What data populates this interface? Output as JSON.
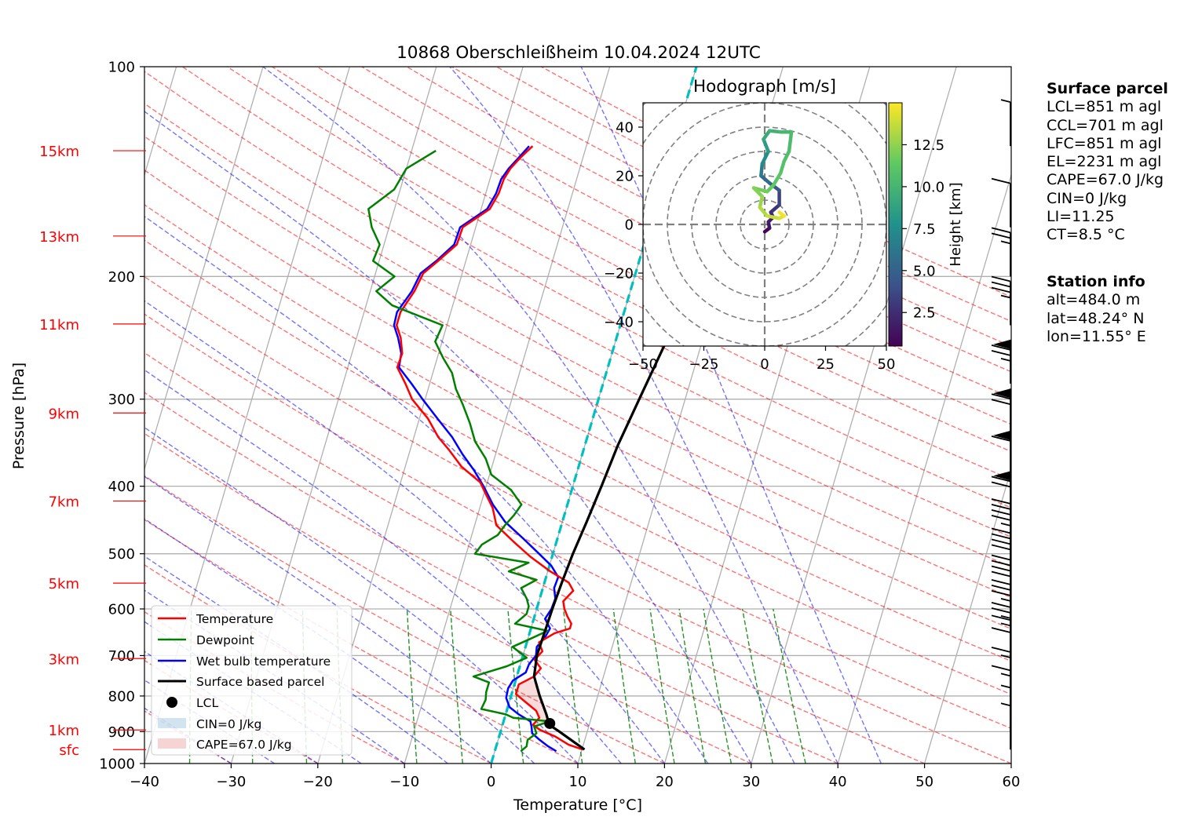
{
  "chart_data": {
    "type": "line",
    "title": "10868 Oberschleißheim 10.04.2024 12UTC",
    "xlabel": "Temperature [°C]",
    "ylabel": "Pressure [hPa]",
    "xlim": [
      -40,
      60
    ],
    "ylim": [
      1000,
      100
    ],
    "log_y": true,
    "grid": true,
    "x_ticks": [
      "−40",
      "−30",
      "−20",
      "−10",
      "0",
      "10",
      "20",
      "30",
      "40",
      "50",
      "60"
    ],
    "y_ticks": [
      {
        "p": 1000,
        "label": "1000"
      },
      {
        "p": 900,
        "label": "900"
      },
      {
        "p": 800,
        "label": "800"
      },
      {
        "p": 700,
        "label": "700"
      },
      {
        "p": 600,
        "label": "600"
      },
      {
        "p": 500,
        "label": "500"
      },
      {
        "p": 400,
        "label": "400"
      },
      {
        "p": 300,
        "label": "300"
      },
      {
        "p": 200,
        "label": "200"
      },
      {
        "p": 100,
        "label": "100"
      }
    ],
    "height_marks": [
      {
        "label": "sfc",
        "p": 955
      },
      {
        "label": "1km",
        "p": 895
      },
      {
        "label": "3km",
        "p": 707
      },
      {
        "label": "5km",
        "p": 551
      },
      {
        "label": "7km",
        "p": 420
      },
      {
        "label": "9km",
        "p": 314
      },
      {
        "label": "11km",
        "p": 234
      },
      {
        "label": "13km",
        "p": 175
      },
      {
        "label": "15km",
        "p": 132
      }
    ],
    "series": [
      {
        "name": "Temperature",
        "color": "#ff0000",
        "p": [
          955,
          940,
          915,
          895,
          880,
          860,
          840,
          815,
          795,
          770,
          750,
          730,
          710,
          690,
          670,
          650,
          640,
          630,
          615,
          600,
          585,
          565,
          550,
          530,
          505,
          480,
          455,
          430,
          410,
          395,
          375,
          355,
          340,
          320,
          300,
          285,
          270,
          258,
          245,
          235,
          225,
          210,
          198,
          190,
          180,
          170,
          160,
          152,
          145,
          140,
          135,
          130
        ],
        "t": [
          10.1,
          8.3,
          6.5,
          4.5,
          3.5,
          4.0,
          3.4,
          1.8,
          0.5,
          0.5,
          2.0,
          2.5,
          1.5,
          2.1,
          1.4,
          2.9,
          4.5,
          4.5,
          3.8,
          3.2,
          2.8,
          3.6,
          2.8,
          0.3,
          -2.5,
          -5.0,
          -7.5,
          -8.5,
          -9.8,
          -10.8,
          -13.5,
          -15.5,
          -17.2,
          -19.0,
          -21.5,
          -22.8,
          -24.3,
          -24.2,
          -24.9,
          -25.8,
          -25.8,
          -24.9,
          -24.5,
          -23.2,
          -21.6,
          -21.5,
          -19.0,
          -18.5,
          -18.4,
          -18.0,
          -17.2,
          -16.2
        ]
      },
      {
        "name": "Dewpoint",
        "color": "#008000",
        "p": [
          960,
          945,
          925,
          905,
          885,
          870,
          860,
          850,
          835,
          810,
          790,
          765,
          750,
          725,
          705,
          680,
          660,
          645,
          630,
          610,
          595,
          580,
          560,
          545,
          530,
          515,
          500,
          485,
          470,
          455,
          440,
          425,
          405,
          385,
          365,
          345,
          325,
          305,
          290,
          275,
          262,
          248,
          235,
          220,
          210,
          200,
          190,
          180,
          170,
          160,
          150,
          140,
          132
        ],
        "t": [
          3.0,
          3.5,
          3.4,
          4.2,
          3.7,
          5.3,
          1.0,
          0.0,
          -3.0,
          -2.8,
          -3.0,
          -3.0,
          -5.0,
          -1.5,
          0.5,
          -1.5,
          0.5,
          2.0,
          -2.0,
          -1.0,
          -1.0,
          -1.5,
          -2.5,
          -1.0,
          -4.5,
          -2.5,
          -9.0,
          -8.5,
          -7.0,
          -6.5,
          -5.8,
          -5.3,
          -7.0,
          -9.8,
          -11.0,
          -12.8,
          -14.0,
          -15.5,
          -16.8,
          -17.8,
          -19.3,
          -20.8,
          -20.5,
          -27.0,
          -29.3,
          -27.7,
          -30.7,
          -30.5,
          -32.0,
          -33.0,
          -30.7,
          -30.0,
          -27.2
        ]
      },
      {
        "name": "Wet bulb temperature",
        "color": "#0000ff",
        "p": [
          960,
          945,
          925,
          905,
          885,
          870,
          850,
          830,
          805,
          780,
          760,
          740,
          720,
          700,
          680,
          660,
          640,
          620,
          600,
          580,
          560,
          540,
          520,
          500,
          475,
          450,
          425,
          400,
          380,
          360,
          340,
          320,
          300,
          285,
          270,
          258,
          245,
          235,
          225,
          210,
          198,
          190,
          180,
          170,
          160,
          152,
          145,
          140,
          135,
          130
        ],
        "t": [
          7.1,
          6.0,
          4.8,
          3.7,
          3.4,
          3.1,
          1.5,
          0.2,
          -0.5,
          -0.6,
          -0.3,
          0.9,
          1.0,
          1.5,
          1.3,
          1.9,
          2.2,
          1.3,
          1.7,
          1.8,
          1.3,
          1.4,
          0.2,
          -1.6,
          -4.0,
          -6.6,
          -8.6,
          -10.3,
          -11.9,
          -13.8,
          -15.6,
          -17.9,
          -20.3,
          -22.1,
          -24.1,
          -24.3,
          -25.2,
          -26.1,
          -26.2,
          -25.2,
          -24.8,
          -23.4,
          -21.9,
          -21.8,
          -19.3,
          -18.8,
          -18.7,
          -18.2,
          -17.4,
          -16.6
        ]
      },
      {
        "name": "Surface based parcel",
        "color": "#000000",
        "p": [
          955,
          900,
          880,
          850,
          800,
          750,
          700,
          650,
          600,
          550,
          500,
          450,
          400,
          350,
          300,
          250,
          200,
          175
        ],
        "t": [
          10.3,
          6.8,
          5.4,
          4.7,
          3.3,
          2.0,
          1.6,
          1.7,
          1.8,
          2.0,
          2.3,
          2.8,
          3.3,
          3.8,
          4.7,
          5.8,
          7.2,
          8.0
        ]
      }
    ],
    "legend": {
      "position": "lower-left",
      "entries": [
        "Temperature",
        "Dewpoint",
        "Wet bulb temperature",
        "Surface based parcel",
        "LCL",
        "CIN=0 J/kg",
        "CAPE=67.0 J/kg"
      ]
    },
    "lcl": {
      "p": 876,
      "t": 5.4
    },
    "hodograph": {
      "title": "Hodograph [m/s]",
      "xlim": [
        -50,
        50
      ],
      "ylim": [
        -50,
        50
      ],
      "x_ticks": [
        "−50",
        "−25",
        "0",
        "25",
        "50"
      ],
      "y_ticks": [
        "−40",
        "−20",
        "0",
        "20",
        "40"
      ],
      "ring_step": 10,
      "colorbar_label": "Height [km]",
      "colorbar_ticks": [
        "2.5",
        "5.0",
        "7.5",
        "10.0",
        "12.5"
      ],
      "colorbar_range": [
        0.5,
        15
      ],
      "points": [
        {
          "u": 0.0,
          "v": -3.0,
          "z": 0.5
        },
        {
          "u": 2.0,
          "v": -1.5,
          "z": 1.0
        },
        {
          "u": 1.5,
          "v": 1.0,
          "z": 1.5
        },
        {
          "u": 3.5,
          "v": 3.0,
          "z": 2.0
        },
        {
          "u": 2.5,
          "v": 5.0,
          "z": 2.5
        },
        {
          "u": 6.0,
          "v": 8.0,
          "z": 3.0
        },
        {
          "u": 6.0,
          "v": 14.0,
          "z": 4.0
        },
        {
          "u": 2.0,
          "v": 17.0,
          "z": 5.0
        },
        {
          "u": -1.5,
          "v": 20.0,
          "z": 6.0
        },
        {
          "u": -1.0,
          "v": 25.0,
          "z": 7.0
        },
        {
          "u": 1.5,
          "v": 30.0,
          "z": 8.0
        },
        {
          "u": -0.5,
          "v": 35.0,
          "z": 9.0
        },
        {
          "u": 2.0,
          "v": 38.5,
          "z": 9.5
        },
        {
          "u": 6.5,
          "v": 38.0,
          "z": 10.0
        },
        {
          "u": 11.0,
          "v": 38.0,
          "z": 10.3
        },
        {
          "u": 10.0,
          "v": 30.0,
          "z": 10.5
        },
        {
          "u": 8.0,
          "v": 26.0,
          "z": 10.8
        },
        {
          "u": 6.5,
          "v": 21.0,
          "z": 11.0
        },
        {
          "u": 3.5,
          "v": 16.0,
          "z": 11.3
        },
        {
          "u": 1.0,
          "v": 13.5,
          "z": 11.6
        },
        {
          "u": -4.5,
          "v": 15.0,
          "z": 12.0
        },
        {
          "u": -1.0,
          "v": 11.5,
          "z": 12.5
        },
        {
          "u": -2.0,
          "v": 7.0,
          "z": 13.0
        },
        {
          "u": 1.0,
          "v": 3.5,
          "z": 13.5
        },
        {
          "u": 6.0,
          "v": 2.5,
          "z": 14.0
        },
        {
          "u": 8.0,
          "v": 3.5,
          "z": 14.5
        },
        {
          "u": 6.0,
          "v": 5.0,
          "z": 15.0
        }
      ]
    },
    "hodograph_colors": [
      "#440154",
      "#3b528b",
      "#21918c",
      "#5ec962",
      "#fde725"
    ],
    "wind_barbs": [
      {
        "p": 955,
        "speed_kt": 5
      },
      {
        "p": 900,
        "speed_kt": 5
      },
      {
        "p": 850,
        "speed_kt": 15
      },
      {
        "p": 800,
        "speed_kt": 15
      },
      {
        "p": 750,
        "speed_kt": 10
      },
      {
        "p": 720,
        "speed_kt": 15
      },
      {
        "p": 690,
        "speed_kt": 25
      },
      {
        "p": 640,
        "speed_kt": 35
      },
      {
        "p": 590,
        "speed_kt": 40
      },
      {
        "p": 540,
        "speed_kt": 40
      },
      {
        "p": 490,
        "speed_kt": 45
      },
      {
        "p": 440,
        "speed_kt": 70
      },
      {
        "p": 385,
        "speed_kt": 60
      },
      {
        "p": 335,
        "speed_kt": 70
      },
      {
        "p": 285,
        "speed_kt": 75
      },
      {
        "p": 235,
        "speed_kt": 35
      },
      {
        "p": 200,
        "speed_kt": 25
      },
      {
        "p": 170,
        "speed_kt": 10
      },
      {
        "p": 130,
        "speed_kt": 5
      }
    ],
    "series_colors": {
      "dry_adiabat": "#ff0000",
      "moist_adiabat": "#0000ff",
      "mixing_ratio": "#008000",
      "isotherm_zero": "#00bfbf",
      "height_marks": "#ff0000"
    }
  },
  "surface_parcel": {
    "heading": "Surface parcel",
    "lines": [
      "LCL=851 m agl",
      "CCL=701 m agl",
      "LFC=851 m agl",
      "EL=2231 m agl",
      "CAPE=67.0 J/kg",
      "CIN=0 J/kg",
      "LI=11.25",
      "CT=8.5 °C"
    ]
  },
  "station_info": {
    "heading": "Station info",
    "lines": [
      "alt=484.0 m",
      "lat=48.24° N",
      "lon=11.55° E"
    ]
  }
}
